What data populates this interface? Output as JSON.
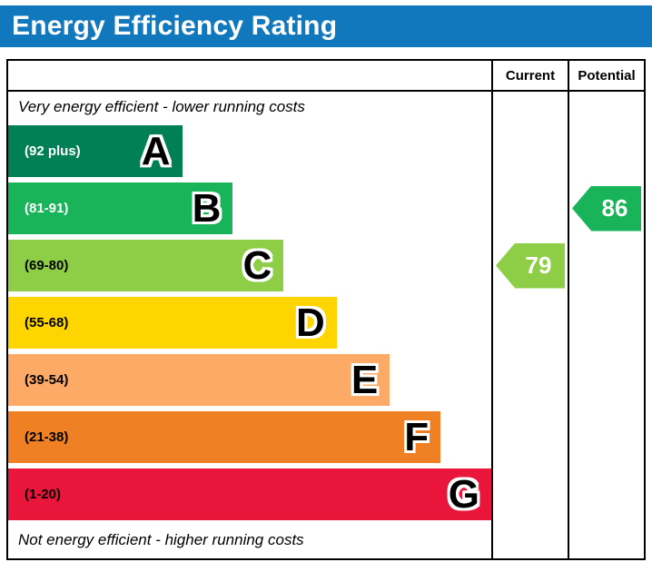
{
  "title": "Energy Efficiency Rating",
  "header": {
    "current_label": "Current",
    "potential_label": "Potential"
  },
  "colors": {
    "header_bg": "#1278be",
    "header_text": "#ffffff",
    "border": "#000000"
  },
  "chart_data": {
    "type": "bar",
    "title": "Energy Efficiency Rating",
    "caption_top": "Very energy efficient - lower running costs",
    "caption_bottom": "Not energy efficient - higher running costs",
    "columns": [
      "Current",
      "Potential"
    ],
    "bands": [
      {
        "letter": "A",
        "range_label": "(92 plus)",
        "color": "#008054",
        "label_color": "#ffffff",
        "width_pct": 36
      },
      {
        "letter": "B",
        "range_label": "(81-91)",
        "color": "#19b459",
        "label_color": "#ffffff",
        "width_pct": 46.5
      },
      {
        "letter": "C",
        "range_label": "(69-80)",
        "color": "#8dce46",
        "label_color": "#000000",
        "width_pct": 57
      },
      {
        "letter": "D",
        "range_label": "(55-68)",
        "color": "#ffd500",
        "label_color": "#000000",
        "width_pct": 68
      },
      {
        "letter": "E",
        "range_label": "(39-54)",
        "color": "#fcaa65",
        "label_color": "#000000",
        "width_pct": 79
      },
      {
        "letter": "F",
        "range_label": "(21-38)",
        "color": "#ef8023",
        "label_color": "#000000",
        "width_pct": 89.5
      },
      {
        "letter": "G",
        "range_label": "(1-20)",
        "color": "#e9153b",
        "label_color": "#000000",
        "width_pct": 100
      }
    ],
    "current": {
      "value": 79,
      "band": "C",
      "band_index": 2,
      "color": "#8dce46"
    },
    "potential": {
      "value": 86,
      "band": "B",
      "band_index": 1,
      "color": "#19b459"
    }
  }
}
